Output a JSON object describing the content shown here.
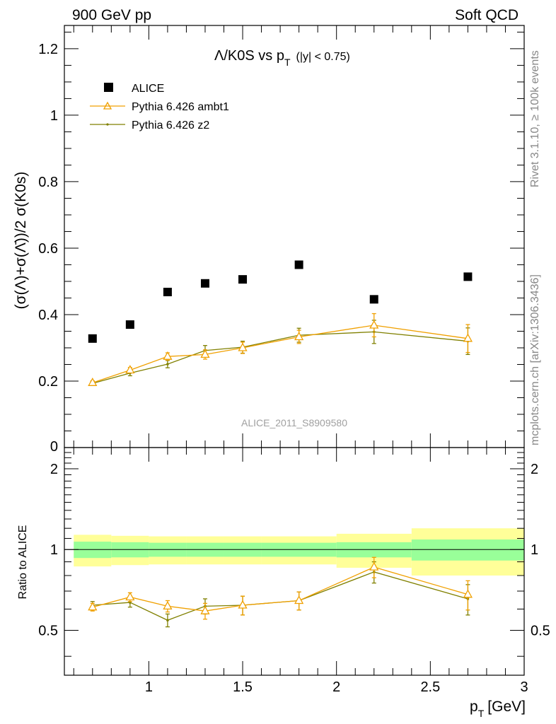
{
  "header": {
    "left": "900 GeV pp",
    "right": "Soft QCD"
  },
  "side_labels": {
    "rivet": "Rivet 3.1.10, ≥ 100k events",
    "mcplots": "mcplots.cern.ch [arXiv:1306.3436]"
  },
  "chart_data": [
    {
      "type": "scatter",
      "panel": "main",
      "title": "Λ/K0S vs pT (|y| < 0.75)",
      "title_parts": {
        "main": "Λ/K0S vs p",
        "sub": "T",
        "cut": "(|y| < 0.75)"
      },
      "ylabel": "(σ(Λ)+σ(Λ̄))/2 σ(K0s)",
      "xlabel": "",
      "xlim": [
        0.55,
        3.0
      ],
      "ylim": [
        0,
        1.27
      ],
      "yticks": [
        0.2,
        0.4,
        0.6,
        0.8,
        1.0,
        1.2
      ],
      "ytick_labels": [
        "0.2",
        "0.4",
        "0.6",
        "0.8",
        "1",
        "1.2"
      ],
      "y_zero_label": "0",
      "watermark": "ALICE_2011_S8909580",
      "series": [
        {
          "name": "ALICE",
          "color": "#000000",
          "marker": "square",
          "x": [
            0.7,
            0.9,
            1.1,
            1.3,
            1.5,
            1.8,
            2.2,
            2.7
          ],
          "values": [
            0.328,
            0.37,
            0.468,
            0.494,
            0.506,
            0.55,
            0.446,
            0.514
          ]
        },
        {
          "name": "Pythia 6.426 ambt1",
          "color": "#f0a000",
          "marker": "triangle",
          "x": [
            0.7,
            0.9,
            1.1,
            1.3,
            1.5,
            1.8,
            2.2,
            2.7
          ],
          "values": [
            0.195,
            0.233,
            0.274,
            0.28,
            0.3,
            0.333,
            0.368,
            0.328
          ],
          "errors": [
            0.006,
            0.008,
            0.011,
            0.014,
            0.017,
            0.02,
            0.035,
            0.042
          ]
        },
        {
          "name": "Pythia 6.426 z2",
          "color": "#808000",
          "marker": "dot",
          "x": [
            0.7,
            0.9,
            1.1,
            1.3,
            1.5,
            1.8,
            2.2,
            2.7
          ],
          "values": [
            0.193,
            0.224,
            0.251,
            0.292,
            0.302,
            0.338,
            0.348,
            0.32
          ],
          "errors": [
            0.006,
            0.008,
            0.011,
            0.015,
            0.018,
            0.021,
            0.035,
            0.04
          ]
        }
      ]
    },
    {
      "type": "line",
      "panel": "ratio",
      "ylabel": "Ratio to ALICE",
      "xlabel": "p_T [GeV]",
      "xlabel_parts": {
        "main": "p",
        "sub": "T",
        "unit": "[GeV]"
      },
      "xlim": [
        0.55,
        3.0
      ],
      "ylim": [
        0.34,
        2.4
      ],
      "yticks": [
        0.5,
        1,
        2
      ],
      "ytick_labels": [
        "0.5",
        "1",
        "2"
      ],
      "xticks": [
        1,
        1.5,
        2,
        2.5,
        3
      ],
      "xtick_labels": [
        "1",
        "1.5",
        "2",
        "2.5",
        "3"
      ],
      "bands": {
        "bin_edges": [
          0.6,
          0.8,
          1.0,
          1.2,
          1.4,
          1.6,
          2.0,
          2.4,
          3.0
        ],
        "stat_lo": [
          0.93,
          0.935,
          0.94,
          0.94,
          0.94,
          0.94,
          0.935,
          0.91
        ],
        "stat_hi": [
          1.07,
          1.065,
          1.06,
          1.06,
          1.06,
          1.06,
          1.065,
          1.09
        ],
        "total_lo": [
          0.865,
          0.875,
          0.88,
          0.88,
          0.88,
          0.88,
          0.855,
          0.8
        ],
        "total_hi": [
          1.135,
          1.125,
          1.12,
          1.12,
          1.12,
          1.12,
          1.145,
          1.2
        ],
        "stat_color": "#99ff99",
        "total_color": "#ffff99"
      },
      "series": [
        {
          "name": "Pythia 6.426 ambt1",
          "color": "#f0a000",
          "marker": "triangle",
          "x": [
            0.7,
            0.9,
            1.1,
            1.3,
            1.5,
            1.8,
            2.2,
            2.7
          ],
          "values": [
            0.61,
            0.665,
            0.615,
            0.59,
            0.62,
            0.645,
            0.86,
            0.68
          ],
          "errors": [
            0.02,
            0.025,
            0.03,
            0.04,
            0.05,
            0.05,
            0.075,
            0.085
          ]
        },
        {
          "name": "Pythia 6.426 z2",
          "color": "#808000",
          "marker": "dot",
          "x": [
            0.7,
            0.9,
            1.1,
            1.3,
            1.5,
            1.8,
            2.2,
            2.7
          ],
          "values": [
            0.62,
            0.635,
            0.545,
            0.615,
            0.62,
            0.645,
            0.825,
            0.655
          ],
          "errors": [
            0.02,
            0.025,
            0.03,
            0.04,
            0.05,
            0.05,
            0.075,
            0.085
          ]
        }
      ]
    }
  ]
}
